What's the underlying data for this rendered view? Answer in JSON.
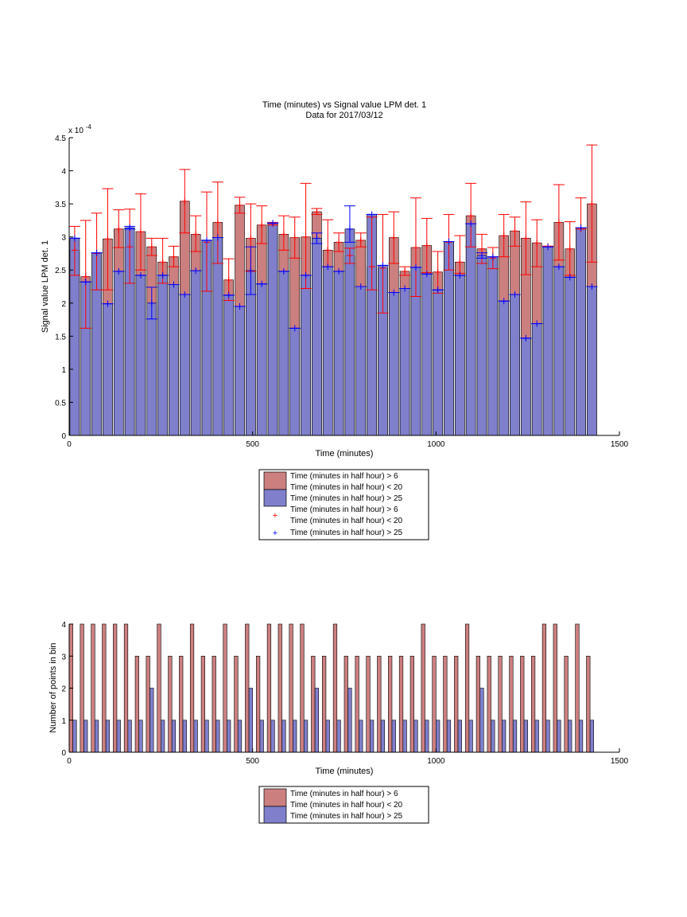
{
  "chart_data": [
    {
      "type": "bar",
      "title": "Time (minutes) vs Signal value LPM det. 1",
      "subtitle": "Data for 2017/03/12",
      "xlabel": "Time (minutes)",
      "ylabel": "Signal value LPM det. 1",
      "y_exponent_label": "x 10",
      "y_exponent": "-4",
      "xlim": [
        0,
        1500
      ],
      "ylim": [
        0,
        4.5
      ],
      "y_scale_note": "values in units of 1e-4",
      "xticks": [
        "0",
        "500",
        "1000",
        "1500"
      ],
      "yticks": [
        "0",
        "0.5",
        "1",
        "1.5",
        "2",
        "2.5",
        "3",
        "3.5",
        "4",
        "4.5"
      ],
      "grid": false,
      "legend_position": "below",
      "legend": [
        {
          "type": "patch",
          "color": "#cc7f7f",
          "label": [
            "Time (minutes in half hour) > 6",
            "Time (minutes in half hour) < 20"
          ]
        },
        {
          "type": "patch",
          "color": "#7f7fcc",
          "label": [
            "Time (minutes in half hour) > 25"
          ]
        },
        {
          "type": "marker",
          "color": "#ff0000",
          "label": [
            "Time (minutes in half hour) > 6",
            "Time (minutes in half hour) < 20"
          ]
        },
        {
          "type": "marker",
          "color": "#0000ff",
          "label": [
            "Time (minutes in half hour) > 25"
          ]
        }
      ],
      "series": [
        {
          "color": "#cc7f7f",
          "errcolor": "#ff0000",
          "x": [
            15,
            45,
            75,
            105,
            135,
            165,
            195,
            225,
            255,
            285,
            315,
            345,
            375,
            405,
            435,
            465,
            495,
            525,
            555,
            585,
            615,
            645,
            675,
            705,
            735,
            765,
            795,
            825,
            855,
            885,
            915,
            945,
            975,
            1005,
            1035,
            1065,
            1095,
            1125,
            1155,
            1185,
            1215,
            1245,
            1275,
            1305,
            1335,
            1365,
            1395,
            1425
          ],
          "values": [
            2.8,
            2.4,
            2.75,
            2.97,
            3.12,
            2.85,
            3.08,
            2.85,
            2.62,
            2.7,
            3.54,
            3.04,
            2.92,
            3.22,
            2.35,
            3.48,
            2.98,
            3.18,
            3.2,
            3.04,
            2.99,
            3.0,
            3.38,
            2.8,
            2.92,
            2.72,
            2.95,
            2.55,
            2.53,
            2.99,
            2.48,
            2.84,
            2.87,
            2.47,
            2.92,
            2.62,
            3.32,
            2.82,
            2.68,
            3.02,
            3.09,
            2.98,
            2.91,
            2.86,
            3.22,
            2.82,
            3.12,
            3.5
          ],
          "err_low": [
            2.42,
            1.62,
            2.2,
            2.2,
            2.84,
            2.3,
            2.5,
            2.72,
            2.3,
            2.55,
            3.06,
            2.78,
            2.18,
            2.6,
            2.04,
            3.36,
            2.48,
            2.9,
            3.18,
            2.8,
            2.68,
            2.22,
            3.34,
            2.55,
            2.78,
            2.6,
            2.85,
            2.2,
            1.85,
            2.6,
            2.42,
            2.1,
            2.46,
            2.15,
            2.5,
            2.45,
            2.85,
            2.6,
            2.52,
            2.7,
            2.86,
            2.43,
            2.55,
            2.86,
            2.65,
            2.42,
            3.12,
            2.62
          ],
          "err_high": [
            3.16,
            3.25,
            3.36,
            3.73,
            3.41,
            3.42,
            3.65,
            2.98,
            2.98,
            2.86,
            4.02,
            3.32,
            3.68,
            3.83,
            2.67,
            3.6,
            3.5,
            3.47,
            3.22,
            3.32,
            3.3,
            3.81,
            3.43,
            3.26,
            3.06,
            2.83,
            3.06,
            3.3,
            3.34,
            3.38,
            2.55,
            3.59,
            3.28,
            2.78,
            3.34,
            3.02,
            3.81,
            3.04,
            2.84,
            3.34,
            3.3,
            3.53,
            3.26,
            2.86,
            3.79,
            3.23,
            3.59,
            4.39
          ]
        },
        {
          "color": "#7f7fcc",
          "errcolor": "#0000ff",
          "x": [
            15,
            45,
            75,
            105,
            135,
            165,
            195,
            225,
            255,
            285,
            315,
            345,
            375,
            405,
            435,
            465,
            495,
            525,
            555,
            585,
            615,
            645,
            675,
            705,
            735,
            765,
            795,
            825,
            855,
            885,
            915,
            945,
            975,
            1005,
            1035,
            1065,
            1095,
            1125,
            1155,
            1185,
            1215,
            1245,
            1275,
            1305,
            1335,
            1365,
            1395,
            1425
          ],
          "values": [
            2.98,
            2.32,
            2.76,
            1.99,
            2.48,
            3.14,
            2.42,
            2.0,
            2.42,
            2.28,
            2.13,
            2.49,
            2.95,
            2.99,
            2.12,
            1.95,
            2.49,
            2.29,
            3.21,
            2.48,
            1.62,
            2.42,
            2.98,
            2.55,
            2.48,
            3.12,
            2.25,
            3.34,
            2.57,
            2.16,
            2.22,
            2.54,
            2.44,
            2.2,
            2.93,
            2.42,
            3.2,
            2.72,
            2.7,
            2.03,
            2.13,
            1.47,
            1.69,
            2.85,
            2.55,
            2.39,
            3.14,
            2.25
          ],
          "err_low": [
            2.98,
            2.32,
            2.76,
            1.99,
            2.48,
            3.12,
            2.42,
            1.76,
            2.42,
            2.28,
            2.13,
            2.49,
            2.95,
            2.99,
            2.12,
            1.95,
            2.13,
            2.29,
            3.21,
            2.48,
            1.62,
            2.42,
            2.9,
            2.55,
            2.48,
            2.92,
            2.25,
            3.34,
            2.57,
            2.16,
            2.22,
            2.54,
            2.44,
            2.2,
            2.93,
            2.42,
            3.2,
            2.68,
            2.7,
            2.03,
            2.13,
            1.47,
            1.69,
            2.85,
            2.55,
            2.39,
            3.14,
            2.25
          ],
          "err_high": [
            2.98,
            2.32,
            2.76,
            1.99,
            2.48,
            3.16,
            2.42,
            2.24,
            2.42,
            2.28,
            2.13,
            2.49,
            2.95,
            2.99,
            2.12,
            1.95,
            2.85,
            2.29,
            3.21,
            2.48,
            1.62,
            2.42,
            3.06,
            2.55,
            2.48,
            3.47,
            2.25,
            3.34,
            2.57,
            2.16,
            2.22,
            2.54,
            2.44,
            2.2,
            2.93,
            2.42,
            3.2,
            2.76,
            2.7,
            2.03,
            2.13,
            1.47,
            1.69,
            2.85,
            2.55,
            2.39,
            3.14,
            2.25
          ]
        }
      ]
    },
    {
      "type": "bar",
      "xlabel": "Time (minutes)",
      "ylabel": "Number of points in bin",
      "xlim": [
        0,
        1500
      ],
      "ylim": [
        0,
        4
      ],
      "xticks": [
        "0",
        "500",
        "1000",
        "1500"
      ],
      "yticks": [
        "0",
        "1",
        "2",
        "3",
        "4"
      ],
      "grid": false,
      "legend_position": "below",
      "legend": [
        {
          "type": "patch",
          "color": "#cc7f7f",
          "label": [
            "Time (minutes in half hour) > 6",
            "Time (minutes in half hour) < 20"
          ]
        },
        {
          "type": "patch",
          "color": "#7f7fcc",
          "label": [
            "Time (minutes in half hour) > 25"
          ]
        }
      ],
      "series": [
        {
          "color": "#cc7f7f",
          "x": [
            5,
            35,
            65,
            95,
            125,
            155,
            185,
            215,
            245,
            275,
            305,
            335,
            365,
            395,
            425,
            455,
            485,
            515,
            545,
            575,
            605,
            635,
            665,
            695,
            725,
            755,
            785,
            815,
            845,
            875,
            905,
            935,
            965,
            995,
            1025,
            1055,
            1085,
            1115,
            1145,
            1175,
            1205,
            1235,
            1265,
            1295,
            1325,
            1355,
            1385,
            1415
          ],
          "values": [
            4,
            4,
            4,
            4,
            4,
            4,
            3,
            3,
            4,
            3,
            3,
            4,
            3,
            3,
            4,
            3,
            4,
            3,
            4,
            4,
            4,
            4,
            3,
            3,
            4,
            3,
            3,
            3,
            3,
            3,
            3,
            3,
            4,
            3,
            3,
            3,
            4,
            3,
            3,
            3,
            3,
            3,
            3,
            4,
            4,
            3,
            4,
            3
          ]
        },
        {
          "color": "#7f7fcc",
          "x": [
            15,
            45,
            75,
            105,
            135,
            165,
            195,
            225,
            255,
            285,
            315,
            345,
            375,
            405,
            435,
            465,
            495,
            525,
            555,
            585,
            615,
            645,
            675,
            705,
            735,
            765,
            795,
            825,
            855,
            885,
            915,
            945,
            975,
            1005,
            1035,
            1065,
            1095,
            1125,
            1155,
            1185,
            1215,
            1245,
            1275,
            1305,
            1335,
            1365,
            1395,
            1425
          ],
          "values": [
            1,
            1,
            1,
            1,
            1,
            1,
            1,
            2,
            1,
            1,
            1,
            1,
            1,
            1,
            1,
            1,
            2,
            1,
            1,
            1,
            1,
            1,
            2,
            1,
            1,
            2,
            1,
            1,
            1,
            1,
            1,
            1,
            1,
            1,
            1,
            1,
            1,
            2,
            1,
            1,
            1,
            1,
            1,
            1,
            1,
            1,
            1,
            1
          ]
        }
      ]
    }
  ]
}
